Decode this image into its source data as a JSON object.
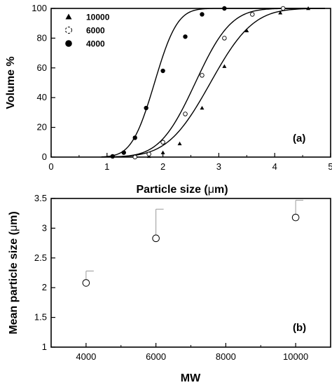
{
  "chart_data": [
    {
      "type": "line",
      "panel_label": "(a)",
      "xlabel": "Particle size (μm)",
      "ylabel": "Volume %",
      "xlim": [
        0,
        5
      ],
      "ylim": [
        0,
        100
      ],
      "xticks": [
        "0",
        "1",
        "2",
        "3",
        "4",
        "5"
      ],
      "yticks": [
        "0",
        "20",
        "40",
        "60",
        "80",
        "100"
      ],
      "grid": false,
      "legend_position": "top-left",
      "series": [
        {
          "name": "10000",
          "marker": "triangle",
          "curve": {
            "mu": 2.85,
            "sigma": 0.6
          },
          "points": [
            [
              1.75,
              0.5
            ],
            [
              2.0,
              3
            ],
            [
              2.3,
              9
            ],
            [
              2.7,
              33
            ],
            [
              3.1,
              61
            ],
            [
              3.5,
              85
            ],
            [
              4.1,
              97
            ],
            [
              4.6,
              100
            ]
          ]
        },
        {
          "name": "6000",
          "marker": "open-circle",
          "curve": {
            "mu": 2.58,
            "sigma": 0.5
          },
          "points": [
            [
              1.5,
              0
            ],
            [
              1.75,
              2
            ],
            [
              2.0,
              10
            ],
            [
              2.4,
              29
            ],
            [
              2.7,
              55
            ],
            [
              3.1,
              80
            ],
            [
              3.6,
              96
            ],
            [
              4.15,
              100
            ]
          ]
        },
        {
          "name": "4000",
          "marker": "filled-circle",
          "curve": {
            "mu": 1.85,
            "sigma": 0.32
          },
          "points": [
            [
              1.1,
              0.5
            ],
            [
              1.3,
              3
            ],
            [
              1.5,
              13
            ],
            [
              1.7,
              33
            ],
            [
              2.0,
              58
            ],
            [
              2.4,
              81
            ],
            [
              2.7,
              96
            ],
            [
              3.1,
              100
            ]
          ]
        }
      ]
    },
    {
      "type": "scatter",
      "panel_label": "(b)",
      "xlabel": "MW",
      "ylabel": "Mean particle size (μm)",
      "xlim": [
        3000,
        11000
      ],
      "ylim": [
        1,
        3.5
      ],
      "xticks": [
        "4000",
        "6000",
        "8000",
        "10000"
      ],
      "yticks": [
        "1",
        "1.5",
        "2",
        "2.5",
        "3",
        "3.5"
      ],
      "grid": false,
      "points": [
        {
          "x": 4000,
          "y": 2.08,
          "err_upper": 2.28
        },
        {
          "x": 6000,
          "y": 2.83,
          "err_upper": 3.32
        },
        {
          "x": 10000,
          "y": 3.18,
          "err_upper": 3.47
        }
      ]
    }
  ]
}
